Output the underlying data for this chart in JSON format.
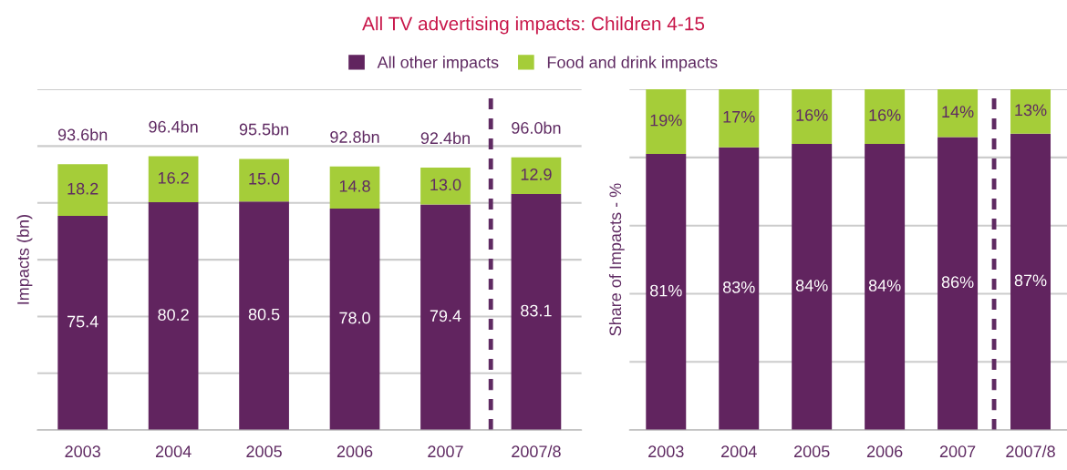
{
  "chart_data": [
    {
      "type": "bar",
      "stacked": true,
      "title": "All TV advertising impacts: Children 4-15",
      "ylabel": "Impacts (bn)",
      "categories": [
        "2003",
        "2004",
        "2005",
        "2006",
        "2007",
        "2007/8"
      ],
      "series": [
        {
          "name": "All other impacts",
          "color": "#61245f",
          "values": [
            75.4,
            80.2,
            80.5,
            78.0,
            79.4,
            83.1
          ],
          "value_labels": [
            "75.4",
            "80.2",
            "80.5",
            "78.0",
            "79.4",
            "83.1"
          ]
        },
        {
          "name": "Food and drink impacts",
          "color": "#a5cd39",
          "values": [
            18.2,
            16.2,
            15.0,
            14.8,
            13.0,
            12.9
          ],
          "value_labels": [
            "18.2",
            "16.2",
            "15.0",
            "14.8",
            "13.0",
            "12.9"
          ]
        }
      ],
      "totals": [
        "93.6bn",
        "96.4bn",
        "95.5bn",
        "92.8bn",
        "92.4bn",
        "96.0bn"
      ],
      "ylim": [
        0,
        120
      ],
      "yticks": [
        {
          "value": 0,
          "label": null
        },
        {
          "value": 20,
          "label": null
        },
        {
          "value": 40,
          "label": null
        },
        {
          "value": 60,
          "label": null
        },
        {
          "value": 80,
          "label": null
        },
        {
          "value": 100,
          "label": null
        },
        {
          "value": 120,
          "label": null
        }
      ],
      "tick_labels": "x",
      "grid": "y",
      "legend": "top"
    },
    {
      "type": "bar",
      "stacked": true,
      "ylabel": "Share of Impacts - %",
      "categories": [
        "2003",
        "2004",
        "2005",
        "2006",
        "2007",
        "2007/8"
      ],
      "series": [
        {
          "color": "#61245f",
          "values": [
            81,
            83,
            84,
            84,
            86,
            87
          ],
          "value_labels": [
            "81%",
            "83%",
            "84%",
            "84%",
            "86%",
            "87%"
          ]
        },
        {
          "color": "#a5cd39",
          "values": [
            19,
            17,
            16,
            16,
            14,
            13
          ],
          "value_labels": [
            "19%",
            "17%",
            "16%",
            "16%",
            "14%",
            "13%"
          ]
        }
      ],
      "ylim": [
        0,
        100
      ],
      "yticks": [
        {
          "value": 0,
          "label": null
        },
        {
          "value": 20,
          "label": null
        },
        {
          "value": 40,
          "label": null
        },
        {
          "value": 60,
          "label": null
        },
        {
          "value": 80,
          "label": null
        },
        {
          "value": 100,
          "label": null
        }
      ],
      "tick_labels": "x",
      "grid": "y"
    }
  ]
}
